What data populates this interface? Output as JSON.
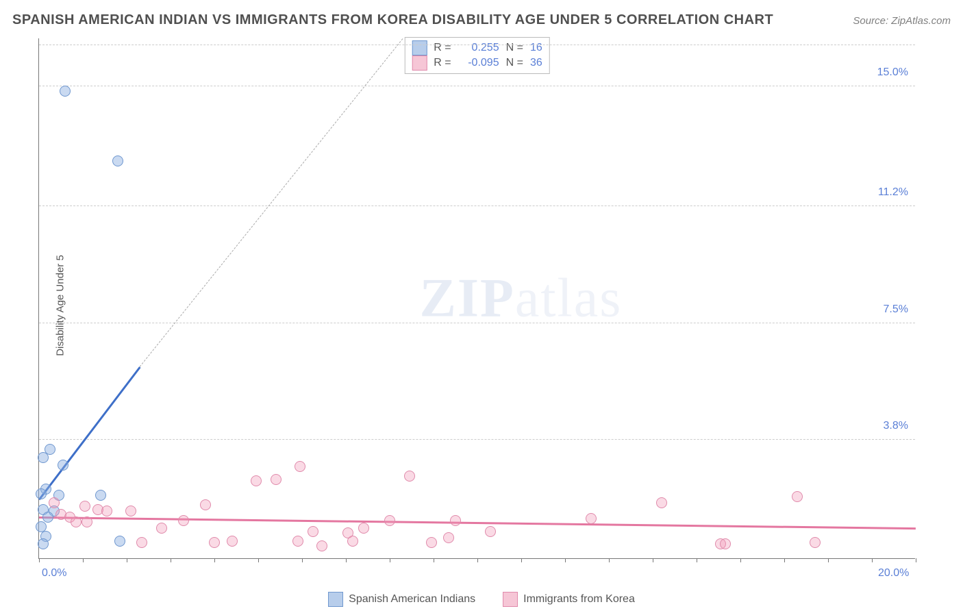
{
  "title": "SPANISH AMERICAN INDIAN VS IMMIGRANTS FROM KOREA DISABILITY AGE UNDER 5 CORRELATION CHART",
  "source_label": "Source: ",
  "source_value": "ZipAtlas.com",
  "y_axis_label": "Disability Age Under 5",
  "watermark_zip": "ZIP",
  "watermark_atlas": "atlas",
  "chart": {
    "type": "scatter",
    "x_range": [
      0,
      20
    ],
    "y_range": [
      0,
      16.5
    ],
    "x_labels": [
      {
        "v": 0.0,
        "label": "0.0%"
      },
      {
        "v": 20.0,
        "label": "20.0%"
      }
    ],
    "y_gridlines": [
      3.8,
      7.5,
      11.2,
      15.0,
      16.3
    ],
    "y_labels": [
      {
        "v": 3.8,
        "label": "3.8%"
      },
      {
        "v": 7.5,
        "label": "7.5%"
      },
      {
        "v": 11.2,
        "label": "11.2%"
      },
      {
        "v": 15.0,
        "label": "15.0%"
      }
    ],
    "x_ticks": [
      0,
      1,
      2,
      3,
      4,
      5,
      6,
      7,
      8,
      9,
      10,
      11,
      12,
      13,
      14,
      15,
      16,
      17,
      18,
      19,
      20
    ],
    "series": [
      {
        "name": "Spanish American Indians",
        "color_fill": "rgba(138,174,224,0.45)",
        "color_stroke": "#6f97cf",
        "swatch_fill": "#b7cdeb",
        "swatch_stroke": "#6f97cf",
        "trend_color": "#3e6fc8",
        "r_label": "R =",
        "r_value": "0.255",
        "n_label": "N =",
        "n_value": "16",
        "trend": {
          "x1": 0.0,
          "y1": 1.9,
          "x2": 2.3,
          "y2": 6.1
        },
        "trend_ext": {
          "x1": 2.3,
          "y1": 6.1,
          "x2": 8.3,
          "y2": 16.5
        },
        "points": [
          {
            "x": 0.6,
            "y": 14.8
          },
          {
            "x": 1.8,
            "y": 12.6
          },
          {
            "x": 0.25,
            "y": 3.45
          },
          {
            "x": 0.1,
            "y": 3.2
          },
          {
            "x": 0.55,
            "y": 2.95
          },
          {
            "x": 0.15,
            "y": 2.2
          },
          {
            "x": 0.05,
            "y": 2.05
          },
          {
            "x": 0.45,
            "y": 2.0
          },
          {
            "x": 1.4,
            "y": 2.0
          },
          {
            "x": 0.1,
            "y": 1.55
          },
          {
            "x": 0.35,
            "y": 1.5
          },
          {
            "x": 0.2,
            "y": 1.3
          },
          {
            "x": 0.05,
            "y": 1.0
          },
          {
            "x": 0.15,
            "y": 0.7
          },
          {
            "x": 0.1,
            "y": 0.45
          },
          {
            "x": 1.85,
            "y": 0.55
          }
        ]
      },
      {
        "name": "Immigrants from Korea",
        "color_fill": "rgba(240,150,180,0.35)",
        "color_stroke": "#e08aab",
        "swatch_fill": "#f6c6d6",
        "swatch_stroke": "#e08aab",
        "trend_color": "#e477a0",
        "r_label": "R =",
        "r_value": "-0.095",
        "n_label": "N =",
        "n_value": "36",
        "trend": {
          "x1": 0.0,
          "y1": 1.35,
          "x2": 20.0,
          "y2": 1.0
        },
        "points": [
          {
            "x": 0.35,
            "y": 1.75
          },
          {
            "x": 0.5,
            "y": 1.4
          },
          {
            "x": 0.7,
            "y": 1.3
          },
          {
            "x": 0.85,
            "y": 1.15
          },
          {
            "x": 1.05,
            "y": 1.65
          },
          {
            "x": 1.1,
            "y": 1.15
          },
          {
            "x": 1.35,
            "y": 1.55
          },
          {
            "x": 1.55,
            "y": 1.5
          },
          {
            "x": 2.1,
            "y": 1.5
          },
          {
            "x": 2.35,
            "y": 0.5
          },
          {
            "x": 2.8,
            "y": 0.95
          },
          {
            "x": 3.3,
            "y": 1.2
          },
          {
            "x": 3.8,
            "y": 1.7
          },
          {
            "x": 4.0,
            "y": 0.5
          },
          {
            "x": 4.4,
            "y": 0.55
          },
          {
            "x": 4.95,
            "y": 2.45
          },
          {
            "x": 5.4,
            "y": 2.5
          },
          {
            "x": 5.9,
            "y": 0.55
          },
          {
            "x": 5.95,
            "y": 2.9
          },
          {
            "x": 6.25,
            "y": 0.85
          },
          {
            "x": 6.45,
            "y": 0.4
          },
          {
            "x": 7.05,
            "y": 0.8
          },
          {
            "x": 7.15,
            "y": 0.55
          },
          {
            "x": 7.4,
            "y": 0.95
          },
          {
            "x": 8.0,
            "y": 1.2
          },
          {
            "x": 8.45,
            "y": 2.6
          },
          {
            "x": 8.95,
            "y": 0.5
          },
          {
            "x": 9.35,
            "y": 0.65
          },
          {
            "x": 9.5,
            "y": 1.2
          },
          {
            "x": 10.3,
            "y": 0.85
          },
          {
            "x": 12.6,
            "y": 1.25
          },
          {
            "x": 14.2,
            "y": 1.75
          },
          {
            "x": 15.55,
            "y": 0.45
          },
          {
            "x": 15.65,
            "y": 0.45
          },
          {
            "x": 17.3,
            "y": 1.95
          },
          {
            "x": 17.7,
            "y": 0.5
          }
        ]
      }
    ]
  }
}
